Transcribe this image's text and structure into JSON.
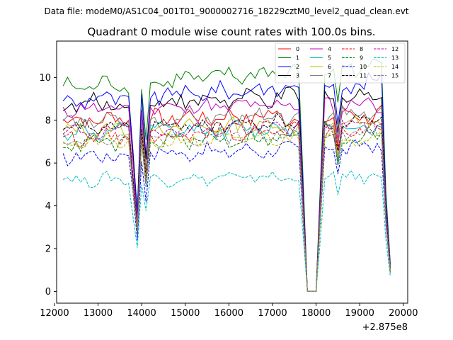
{
  "figure": {
    "suptitle": "Data file: modeM0/AS1C04_001T01_9000002716_18229cztM0_level2_quad_clean.evt"
  },
  "chart_data": {
    "type": "line",
    "title": "Quadrant 0 module wise count rates with 100.0s bins.",
    "xlabel": "",
    "ylabel": "",
    "x_offset_label": "+2.875e8",
    "xlim": [
      12050,
      20100
    ],
    "ylim": [
      -0.55,
      11.7
    ],
    "xticks": [
      12000,
      13000,
      14000,
      15000,
      16000,
      17000,
      18000,
      19000,
      20000
    ],
    "yticks": [
      0,
      2,
      4,
      6,
      8,
      10
    ],
    "xticklabels": [
      "12000",
      "13000",
      "14000",
      "15000",
      "16000",
      "17000",
      "18000",
      "19000",
      "20000"
    ],
    "yticklabels": [
      "0",
      "2",
      "4",
      "6",
      "8",
      "10"
    ],
    "x_start": 12200,
    "x_step": 100,
    "n_points": 76,
    "legend_position": "top-right",
    "features": [
      {
        "index": 16,
        "factor": 0.7
      },
      {
        "index": 17,
        "factor": 0.38
      },
      {
        "index": 18,
        "factor": 0.98
      },
      {
        "index": 19,
        "factor": 0.7
      },
      {
        "index": 55,
        "factor": 0.5
      },
      {
        "index": 56,
        "factor": 0.0
      },
      {
        "index": 57,
        "factor": 0.0
      },
      {
        "index": 58,
        "factor": 0.0
      },
      {
        "index": 59,
        "factor": 0.5
      },
      {
        "index": 63,
        "factor": 0.82
      },
      {
        "index": 74,
        "factor": 0.45
      },
      {
        "index": 75,
        "factor": 0.13
      }
    ],
    "series": [
      {
        "name": "0",
        "color": "#ff0000",
        "dash": "solid",
        "base": 8.0,
        "drift": 0.3,
        "noise": 0.35
      },
      {
        "name": "1",
        "color": "#008000",
        "dash": "solid",
        "base": 9.5,
        "drift": 1.1,
        "noise": 0.35
      },
      {
        "name": "2",
        "color": "#0000ff",
        "dash": "solid",
        "base": 8.9,
        "drift": 0.9,
        "noise": 0.35
      },
      {
        "name": "3",
        "color": "#000000",
        "dash": "solid",
        "base": 8.7,
        "drift": 0.5,
        "noise": 0.35
      },
      {
        "name": "4",
        "color": "#bf00bf",
        "dash": "solid",
        "base": 8.5,
        "drift": 0.3,
        "noise": 0.3
      },
      {
        "name": "5",
        "color": "#00bfbf",
        "dash": "solid",
        "base": 7.4,
        "drift": 0.3,
        "noise": 0.3
      },
      {
        "name": "6",
        "color": "#bfbf00",
        "dash": "solid",
        "base": 7.5,
        "drift": 0.4,
        "noise": 0.3
      },
      {
        "name": "7",
        "color": "#808080",
        "dash": "solid",
        "base": 7.9,
        "drift": 0.4,
        "noise": 0.3
      },
      {
        "name": "8",
        "color": "#ff0000",
        "dash": "dashed",
        "base": 7.2,
        "drift": 0.4,
        "noise": 0.3
      },
      {
        "name": "9",
        "color": "#008000",
        "dash": "dashed",
        "base": 6.9,
        "drift": 0.4,
        "noise": 0.3
      },
      {
        "name": "10",
        "color": "#0000ff",
        "dash": "dashed",
        "base": 6.3,
        "drift": 0.5,
        "noise": 0.3
      },
      {
        "name": "11",
        "color": "#000000",
        "dash": "dashed",
        "base": 7.6,
        "drift": 0.4,
        "noise": 0.3
      },
      {
        "name": "12",
        "color": "#bf00bf",
        "dash": "dashed",
        "base": 7.4,
        "drift": 0.4,
        "noise": 0.3
      },
      {
        "name": "13",
        "color": "#00bfbf",
        "dash": "dashed",
        "base": 5.2,
        "drift": 0.2,
        "noise": 0.25
      },
      {
        "name": "14",
        "color": "#bfbf00",
        "dash": "dashed",
        "base": 6.9,
        "drift": 0.4,
        "noise": 0.3
      },
      {
        "name": "15",
        "color": "#808080",
        "dash": "dashed",
        "base": 7.1,
        "drift": 0.4,
        "noise": 0.3
      }
    ]
  }
}
